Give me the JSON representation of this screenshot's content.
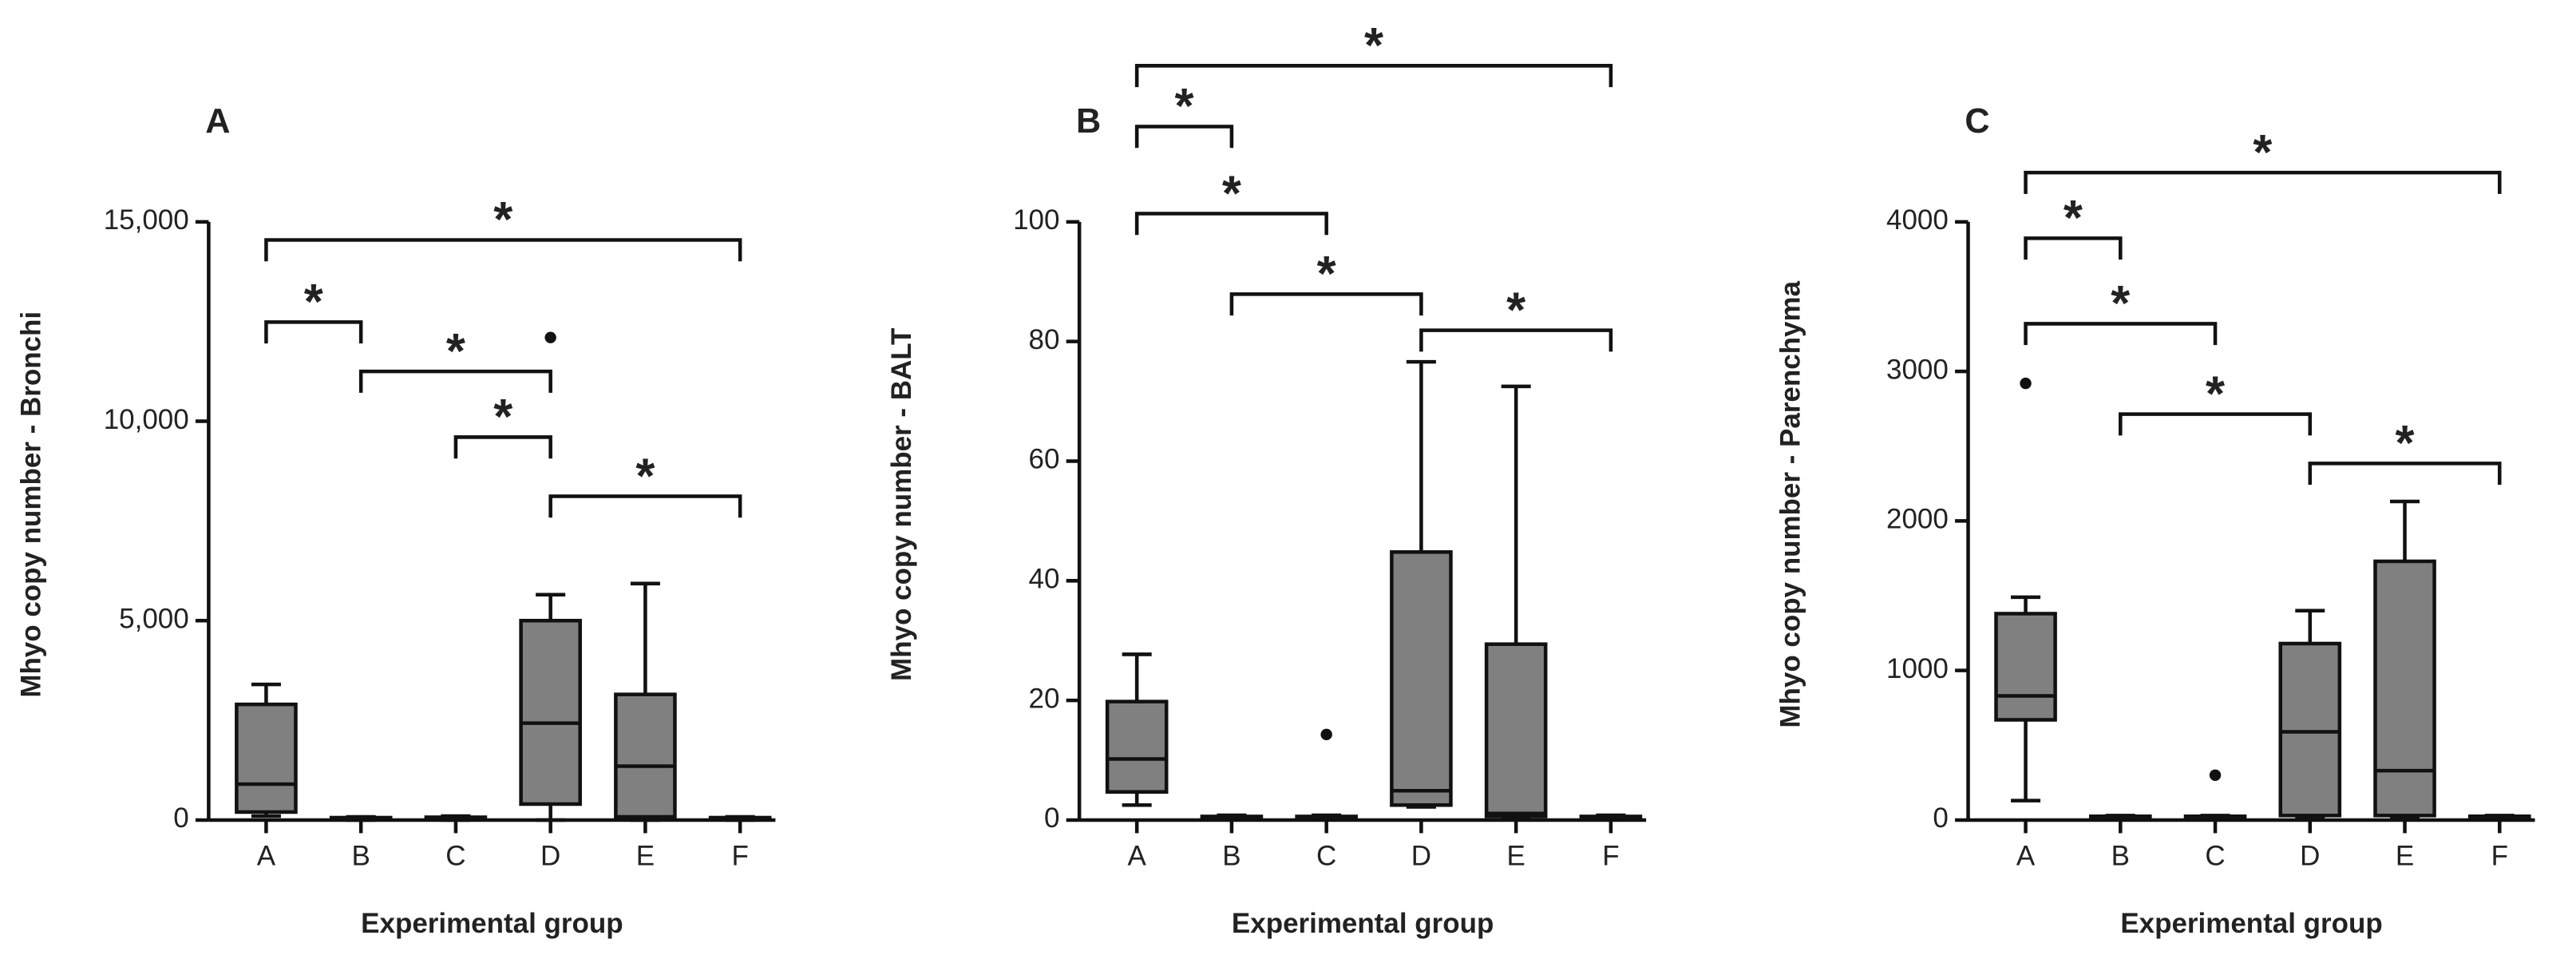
{
  "chart_data": [
    {
      "type": "box",
      "panel_label": "A",
      "y_label": "Mhyo copy number - Bronchi",
      "x_label": "Experimental group",
      "categories": [
        "A",
        "B",
        "C",
        "D",
        "E",
        "F"
      ],
      "color": "#808080",
      "boxes": [
        {
          "min": 100,
          "q1": 200,
          "median": 900,
          "q3": 2900,
          "max": 3400,
          "outliers": []
        },
        {
          "min": 0,
          "q1": 20,
          "median": 40,
          "q3": 60,
          "max": 80,
          "outliers": []
        },
        {
          "min": 0,
          "q1": 20,
          "median": 40,
          "q3": 70,
          "max": 100,
          "outliers": []
        },
        {
          "min": 0,
          "q1": 400,
          "median": 2430,
          "q3": 5000,
          "max": 5650,
          "outliers": [
            12100
          ]
        },
        {
          "min": 0,
          "q1": 80,
          "median": 1350,
          "q3": 3150,
          "max": 5930,
          "outliers": []
        },
        {
          "min": 0,
          "q1": 20,
          "median": 40,
          "q3": 60,
          "max": 80,
          "outliers": []
        }
      ],
      "ylim": [
        0,
        15000
      ],
      "yticks": [
        0,
        {
          "value": 5000,
          "label": "5,000"
        },
        {
          "value": 10000,
          "label": "10,000"
        },
        {
          "value": 15000,
          "label": "15,000"
        }
      ],
      "brackets": [
        {
          "groups": [
            "A",
            "F"
          ],
          "label": "*"
        },
        {
          "groups": [
            "A",
            "B"
          ],
          "label": "*"
        },
        {
          "groups": [
            "B",
            "D"
          ],
          "label": "*"
        },
        {
          "groups": [
            "C",
            "D"
          ],
          "label": "*"
        },
        {
          "groups": [
            "D",
            "F"
          ],
          "label": "*"
        }
      ]
    },
    {
      "type": "box",
      "panel_label": "B",
      "y_label": "Mhyo copy number - BALT",
      "x_label": "Experimental group",
      "categories": [
        "A",
        "B",
        "C",
        "D",
        "E",
        "F"
      ],
      "color": "#808080",
      "boxes": [
        {
          "min": 2.5,
          "q1": 4.7,
          "median": 10.2,
          "q3": 19.8,
          "max": 27.7,
          "outliers": []
        },
        {
          "min": 0.2,
          "q1": 0.4,
          "median": 0.5,
          "q3": 0.6,
          "max": 0.8,
          "outliers": []
        },
        {
          "min": 0.2,
          "q1": 0.4,
          "median": 0.5,
          "q3": 0.6,
          "max": 0.8,
          "outliers": [
            14.3
          ]
        },
        {
          "min": 2.2,
          "q1": 2.5,
          "median": 4.9,
          "q3": 44.8,
          "max": 76.6,
          "outliers": []
        },
        {
          "min": 0.3,
          "q1": 0.6,
          "median": 1.1,
          "q3": 29.4,
          "max": 72.5,
          "outliers": []
        },
        {
          "min": 0.2,
          "q1": 0.4,
          "median": 0.5,
          "q3": 0.6,
          "max": 0.8,
          "outliers": []
        }
      ],
      "ylim": [
        0,
        100
      ],
      "yticks": [
        0,
        20,
        40,
        60,
        80,
        100
      ],
      "brackets": [
        {
          "groups": [
            "A",
            "F"
          ],
          "label": "*"
        },
        {
          "groups": [
            "A",
            "B"
          ],
          "label": "*"
        },
        {
          "groups": [
            "A",
            "C"
          ],
          "label": "*"
        },
        {
          "groups": [
            "B",
            "D"
          ],
          "label": "*"
        },
        {
          "groups": [
            "D",
            "F"
          ],
          "label": "*"
        }
      ]
    },
    {
      "type": "box",
      "panel_label": "C",
      "y_label": "Mhyo copy number - Parenchyma",
      "x_label": "Experimental group",
      "categories": [
        "A",
        "B",
        "C",
        "D",
        "E",
        "F"
      ],
      "color": "#808080",
      "boxes": [
        {
          "min": 130,
          "q1": 670,
          "median": 830,
          "q3": 1380,
          "max": 1490,
          "outliers": [
            2920
          ]
        },
        {
          "min": 10,
          "q1": 15,
          "median": 20,
          "q3": 25,
          "max": 30,
          "outliers": []
        },
        {
          "min": 10,
          "q1": 15,
          "median": 20,
          "q3": 25,
          "max": 30,
          "outliers": [
            300
          ]
        },
        {
          "min": 20,
          "q1": 30,
          "median": 590,
          "q3": 1180,
          "max": 1400,
          "outliers": []
        },
        {
          "min": 20,
          "q1": 30,
          "median": 330,
          "q3": 1730,
          "max": 2130,
          "outliers": []
        },
        {
          "min": 10,
          "q1": 15,
          "median": 20,
          "q3": 25,
          "max": 30,
          "outliers": []
        }
      ],
      "ylim": [
        0,
        4000
      ],
      "yticks": [
        0,
        1000,
        2000,
        3000,
        4000
      ],
      "brackets": [
        {
          "groups": [
            "A",
            "F"
          ],
          "label": "*"
        },
        {
          "groups": [
            "A",
            "B"
          ],
          "label": "*"
        },
        {
          "groups": [
            "A",
            "C"
          ],
          "label": "*"
        },
        {
          "groups": [
            "B",
            "D"
          ],
          "label": "*"
        },
        {
          "groups": [
            "D",
            "F"
          ],
          "label": "*"
        }
      ]
    }
  ]
}
